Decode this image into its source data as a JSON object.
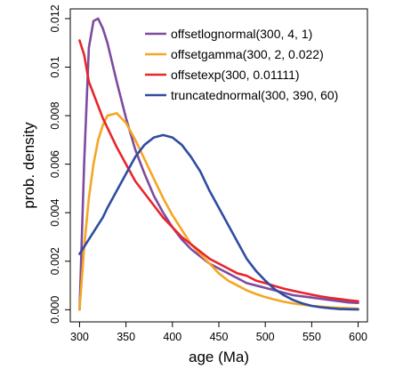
{
  "chart_data": {
    "type": "line",
    "title": "",
    "xlabel": "age (Ma)",
    "ylabel": "prob. density",
    "xlim": [
      290,
      610
    ],
    "ylim": [
      -0.0005,
      0.0124
    ],
    "grid": false,
    "legend_position": "top-right",
    "x_ticks": [
      300,
      350,
      400,
      450,
      500,
      550,
      600
    ],
    "x_tick_labels": [
      "300",
      "350",
      "400",
      "450",
      "500",
      "550",
      "600"
    ],
    "y_ticks": [
      0.0,
      0.002,
      0.004,
      0.006,
      0.008,
      0.01,
      0.012
    ],
    "y_tick_labels": [
      "0.000",
      "0.002",
      "0.004",
      "0.006",
      "0.008",
      "0.01",
      "0.012"
    ],
    "x": [
      300,
      305,
      310,
      315,
      320,
      325,
      330,
      340,
      350,
      360,
      370,
      380,
      390,
      400,
      410,
      420,
      430,
      440,
      450,
      460,
      470,
      480,
      490,
      500,
      510,
      520,
      530,
      540,
      550,
      560,
      570,
      580,
      590,
      600
    ],
    "series": [
      {
        "name": "offsetlognormal(300, 4, 1)",
        "color": "#7d4ba0",
        "values": [
          0.0,
          0.0061,
          0.0108,
          0.0119,
          0.012,
          0.0116,
          0.011,
          0.0094,
          0.0079,
          0.0066,
          0.0056,
          0.0047,
          0.004,
          0.0034,
          0.0029,
          0.0025,
          0.0022,
          0.0019,
          0.0017,
          0.0015,
          0.0013,
          0.0011,
          0.001,
          0.0009,
          0.0008,
          0.0007,
          0.0006,
          0.00055,
          0.0005,
          0.00045,
          0.0004,
          0.00035,
          0.0003,
          0.00028
        ]
      },
      {
        "name": "offsetgamma(300, 2, 0.022)",
        "color": "#f5a623",
        "values": [
          0.0,
          0.0026,
          0.0046,
          0.006,
          0.007,
          0.0076,
          0.008,
          0.0081,
          0.0077,
          0.007,
          0.0062,
          0.0054,
          0.0046,
          0.0039,
          0.0033,
          0.0027,
          0.0023,
          0.0019,
          0.0015,
          0.0012,
          0.001,
          0.0008,
          0.00065,
          0.00052,
          0.00042,
          0.00033,
          0.00026,
          0.00021,
          0.00016,
          0.00013,
          0.0001,
          8e-05,
          6e-05,
          5e-05
        ]
      },
      {
        "name": "offsetexp(300, 0.01111)",
        "color": "#e8262b",
        "values": [
          0.0111,
          0.0105,
          0.0094,
          0.0089,
          0.0084,
          0.0079,
          0.0075,
          0.0067,
          0.006,
          0.0053,
          0.0048,
          0.0043,
          0.0038,
          0.0034,
          0.003,
          0.0027,
          0.0024,
          0.0021,
          0.0019,
          0.0017,
          0.0015,
          0.0014,
          0.0012,
          0.0011,
          0.00098,
          0.00087,
          0.00078,
          0.0007,
          0.00062,
          0.00055,
          0.00049,
          0.00044,
          0.00039,
          0.00035
        ]
      },
      {
        "name": "truncatednormal(300, 390, 60)",
        "color": "#2f4da0",
        "values": [
          0.0023,
          0.0026,
          0.0029,
          0.0032,
          0.0035,
          0.0038,
          0.0042,
          0.0049,
          0.0056,
          0.0063,
          0.0068,
          0.0071,
          0.0072,
          0.0071,
          0.0068,
          0.0063,
          0.0057,
          0.0049,
          0.0042,
          0.0035,
          0.0028,
          0.0021,
          0.0016,
          0.0012,
          0.00085,
          0.0006,
          0.0004,
          0.00026,
          0.00016,
          0.0001,
          6e-05,
          3e-05,
          2e-05,
          1e-05
        ]
      }
    ]
  }
}
